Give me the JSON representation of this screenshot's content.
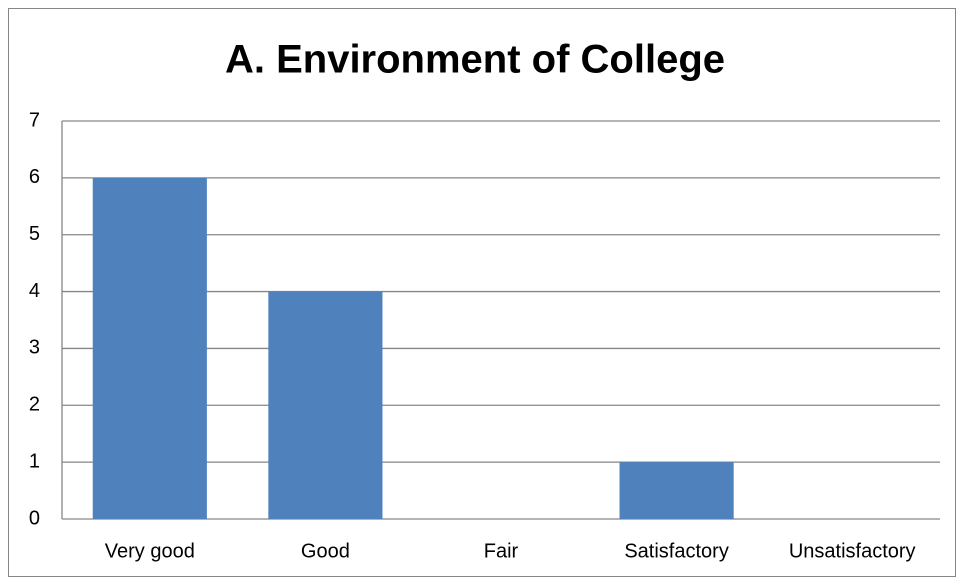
{
  "chart_data": {
    "type": "bar",
    "title": "A. Environment of College",
    "categories": [
      "Very good",
      "Good",
      "Fair",
      "Satisfactory",
      "Unsatisfactory"
    ],
    "values": [
      6,
      4,
      0,
      1,
      0
    ],
    "color": "#4f81bd",
    "ylim": [
      0,
      7
    ],
    "yticks": [
      0,
      1,
      2,
      3,
      4,
      5,
      6,
      7
    ],
    "grid": true
  }
}
